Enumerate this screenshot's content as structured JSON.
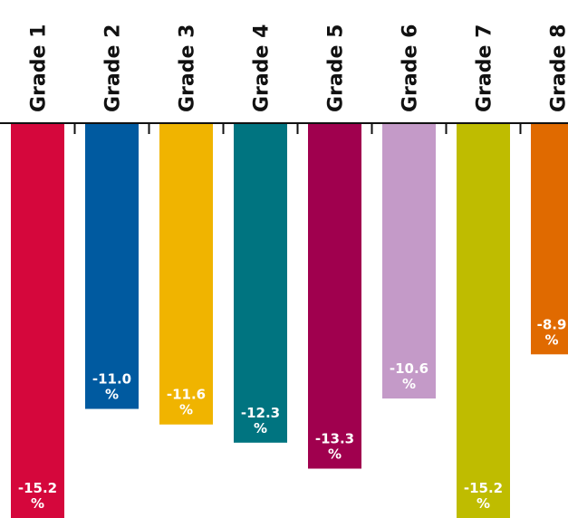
{
  "chart_data": {
    "type": "bar",
    "categories": [
      "Grade 1",
      "Grade 2",
      "Grade 3",
      "Grade 4",
      "Grade 5",
      "Grade 6",
      "Grade 7",
      "Grade 8"
    ],
    "values": [
      -15.2,
      -11.0,
      -11.6,
      -12.3,
      -13.3,
      -10.6,
      -15.2,
      -8.9
    ],
    "value_labels": [
      "-15.2",
      "-11.0",
      "-11.6",
      "-12.3",
      "-13.3",
      "-10.6",
      "-15.2",
      "-8.9"
    ],
    "value_suffix": "%",
    "colors": [
      "#d5073c",
      "#005aa0",
      "#f0b400",
      "#007480",
      "#a0004e",
      "#c49ac8",
      "#bfbc00",
      "#e06a00"
    ],
    "axis_color": "#111111",
    "category_axis_position": "top",
    "ylim": [
      -15.2,
      0
    ],
    "grid": false,
    "legend": "none",
    "title": "",
    "xlabel": "",
    "ylabel": ""
  }
}
